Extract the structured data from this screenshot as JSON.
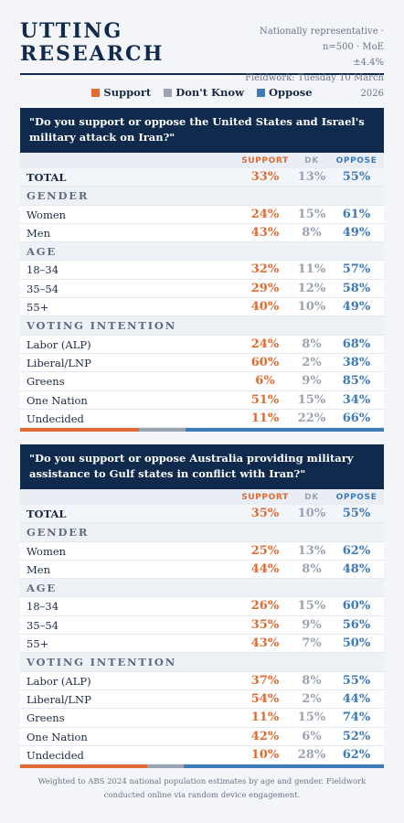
{
  "brand": {
    "line1": "UTTING",
    "line2": "RESEARCH"
  },
  "meta": {
    "line1": "Nationally representative · n=500 · MoE",
    "line2": "±4.4%",
    "line3": "Fieldwork: Tuesday 10 March 2026"
  },
  "legend": [
    {
      "label": "Support",
      "color": "#e06b33"
    },
    {
      "label": "Don't Know",
      "color": "#9aa3b1"
    },
    {
      "label": "Oppose",
      "color": "#3d7ab8"
    }
  ],
  "columns": {
    "support": "SUPPORT",
    "dk": "DK",
    "oppose": "OPPOSE"
  },
  "polls": [
    {
      "question": "\"Do you support or oppose the United States and Israel's military attack on Iran?\"",
      "total": {
        "label": "TOTAL",
        "support": "33%",
        "dk": "13%",
        "oppose": "55%"
      },
      "groups": [
        {
          "name": "GENDER",
          "rows": [
            {
              "label": "Women",
              "support": "24%",
              "dk": "15%",
              "oppose": "61%"
            },
            {
              "label": "Men",
              "support": "43%",
              "dk": "8%",
              "oppose": "49%"
            }
          ]
        },
        {
          "name": "AGE",
          "rows": [
            {
              "label": "18–34",
              "support": "32%",
              "dk": "11%",
              "oppose": "57%"
            },
            {
              "label": "35–54",
              "support": "29%",
              "dk": "12%",
              "oppose": "58%"
            },
            {
              "label": "55+",
              "support": "40%",
              "dk": "10%",
              "oppose": "49%"
            }
          ]
        },
        {
          "name": "VOTING INTENTION",
          "rows": [
            {
              "label": "Labor (ALP)",
              "support": "24%",
              "dk": "8%",
              "oppose": "68%"
            },
            {
              "label": "Liberal/LNP",
              "support": "60%",
              "dk": "2%",
              "oppose": "38%"
            },
            {
              "label": "Greens",
              "support": "6%",
              "dk": "9%",
              "oppose": "85%"
            },
            {
              "label": "One Nation",
              "support": "51%",
              "dk": "15%",
              "oppose": "34%"
            },
            {
              "label": "Undecided",
              "support": "11%",
              "dk": "22%",
              "oppose": "66%"
            }
          ]
        }
      ]
    },
    {
      "question": "\"Do you support or oppose Australia providing military assistance to Gulf states in conflict with Iran?\"",
      "total": {
        "label": "TOTAL",
        "support": "35%",
        "dk": "10%",
        "oppose": "55%"
      },
      "groups": [
        {
          "name": "GENDER",
          "rows": [
            {
              "label": "Women",
              "support": "25%",
              "dk": "13%",
              "oppose": "62%"
            },
            {
              "label": "Men",
              "support": "44%",
              "dk": "8%",
              "oppose": "48%"
            }
          ]
        },
        {
          "name": "AGE",
          "rows": [
            {
              "label": "18–34",
              "support": "26%",
              "dk": "15%",
              "oppose": "60%"
            },
            {
              "label": "35–54",
              "support": "35%",
              "dk": "9%",
              "oppose": "56%"
            },
            {
              "label": "55+",
              "support": "43%",
              "dk": "7%",
              "oppose": "50%"
            }
          ]
        },
        {
          "name": "VOTING INTENTION",
          "rows": [
            {
              "label": "Labor (ALP)",
              "support": "37%",
              "dk": "8%",
              "oppose": "55%"
            },
            {
              "label": "Liberal/LNP",
              "support": "54%",
              "dk": "2%",
              "oppose": "44%"
            },
            {
              "label": "Greens",
              "support": "11%",
              "dk": "15%",
              "oppose": "74%"
            },
            {
              "label": "One Nation",
              "support": "42%",
              "dk": "6%",
              "oppose": "52%"
            },
            {
              "label": "Undecided",
              "support": "10%",
              "dk": "28%",
              "oppose": "62%"
            }
          ]
        }
      ]
    }
  ],
  "footer": "Weighted to ABS 2024 national population estimates by age and gender. Fieldwork conducted online via random device engagement."
}
